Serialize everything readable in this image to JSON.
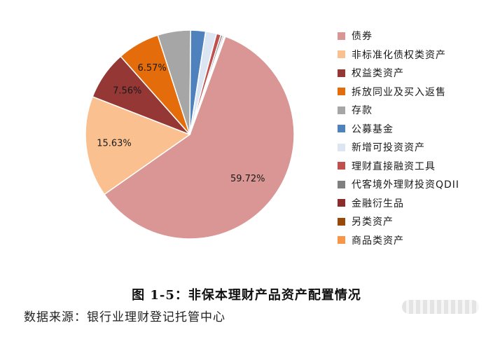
{
  "chart_data": {
    "type": "pie",
    "title": "图 1-5：非保本理财产品资产配置情况",
    "source": "数据来源：银行业理财登记托管中心",
    "slices": [
      {
        "name": "债券",
        "value": 59.72,
        "label": "59.72%",
        "color": "#d99694"
      },
      {
        "name": "非标准化债权类资产",
        "value": 15.63,
        "label": "15.63%",
        "color": "#fac090"
      },
      {
        "name": "权益类资产",
        "value": 7.56,
        "label": "7.56%",
        "color": "#953735"
      },
      {
        "name": "拆放同业及买入返售",
        "value": 6.57,
        "label": "6.57%",
        "color": "#e46c0a"
      },
      {
        "name": "存款",
        "value": 5.1,
        "label": "",
        "color": "#a6a6a6"
      },
      {
        "name": "公募基金",
        "value": 2.3,
        "label": "",
        "color": "#4f81bd"
      },
      {
        "name": "新增可投资资产",
        "value": 1.7,
        "label": "",
        "color": "#dce6f2"
      },
      {
        "name": "理财直接融资工具",
        "value": 0.7,
        "label": "",
        "color": "#c0504d"
      },
      {
        "name": "代客境外理财投资QDII",
        "value": 0.3,
        "label": "",
        "color": "#7f7f7f"
      },
      {
        "name": "金融衍生品",
        "value": 0.2,
        "label": "",
        "color": "#8b2d2b"
      },
      {
        "name": "另类资产",
        "value": 0.12,
        "label": "",
        "color": "#984807"
      },
      {
        "name": "商品类资产",
        "value": 0.1,
        "label": "",
        "color": "#f79646"
      }
    ]
  }
}
